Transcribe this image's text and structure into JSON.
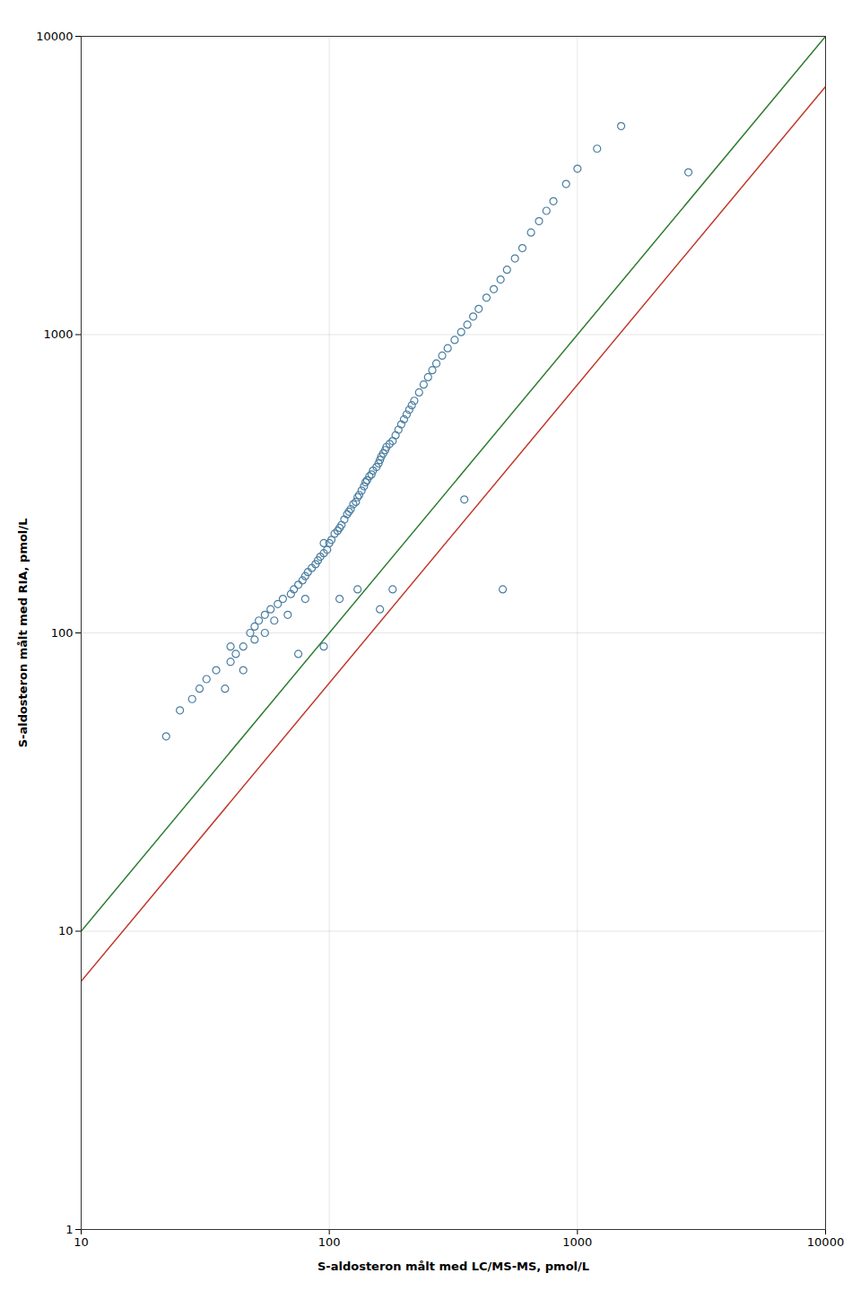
{
  "chart_data": {
    "type": "scatter",
    "xlabel": "S-aldosteron målt med LC/MS-MS, pmol/L",
    "ylabel": "S-aldosteron målt med RIA, pmol/L",
    "log": true,
    "grid": true,
    "xlim": [
      10,
      10000
    ],
    "ylim": [
      1,
      10000
    ],
    "xticks": [
      10,
      100,
      1000,
      10000
    ],
    "yticks": [
      1,
      10,
      100,
      1000,
      10000
    ],
    "series": [
      {
        "type": "line",
        "color": "#2e7d32",
        "line_style": "solid",
        "x": [
          10,
          10000
        ],
        "values": [
          10,
          10000
        ]
      },
      {
        "type": "line",
        "color": "#c0392b",
        "line_style": "solid",
        "x": [
          10,
          10000
        ],
        "values": [
          6.792036,
          6792.036
        ]
      },
      {
        "type": "scatter",
        "color": "#4a7ea0",
        "marker": "circle",
        "x": [
          22,
          25,
          28,
          30,
          32,
          35,
          38,
          40,
          40,
          42,
          45,
          48,
          50,
          50,
          52,
          55,
          55,
          58,
          60,
          62,
          65,
          68,
          70,
          72,
          75,
          78,
          80,
          82,
          85,
          88,
          90,
          92,
          95,
          95,
          98,
          100,
          102,
          105,
          108,
          110,
          112,
          115,
          118,
          120,
          122,
          125,
          128,
          130,
          132,
          135,
          138,
          140,
          142,
          145,
          148,
          150,
          155,
          158,
          160,
          162,
          165,
          168,
          170,
          175,
          180,
          185,
          190,
          195,
          200,
          205,
          210,
          215,
          220,
          230,
          240,
          250,
          260,
          270,
          285,
          300,
          320,
          340,
          360,
          380,
          400,
          430,
          460,
          490,
          520,
          560,
          600,
          650,
          700,
          750,
          800,
          900,
          1000,
          1200,
          1500,
          2800,
          45,
          75,
          80,
          95,
          110,
          130,
          160,
          180,
          350,
          500
        ],
        "values": [
          45,
          55,
          60,
          65,
          70,
          75,
          65,
          80,
          90,
          85,
          90,
          100,
          95,
          105,
          110,
          100,
          115,
          120,
          110,
          125,
          130,
          115,
          135,
          140,
          145,
          150,
          155,
          160,
          165,
          170,
          175,
          180,
          185,
          200,
          190,
          200,
          205,
          215,
          220,
          225,
          230,
          240,
          250,
          255,
          260,
          270,
          275,
          285,
          290,
          300,
          310,
          320,
          325,
          335,
          340,
          350,
          360,
          370,
          380,
          390,
          400,
          410,
          420,
          430,
          440,
          460,
          480,
          500,
          520,
          540,
          560,
          580,
          600,
          640,
          680,
          720,
          760,
          800,
          850,
          900,
          960,
          1020,
          1080,
          1150,
          1220,
          1330,
          1420,
          1530,
          1650,
          1800,
          1950,
          2200,
          2400,
          2600,
          2800,
          3200,
          3600,
          4200,
          5000,
          3500,
          75,
          85,
          130,
          90,
          130,
          140,
          120,
          140,
          280,
          140
        ]
      }
    ]
  }
}
